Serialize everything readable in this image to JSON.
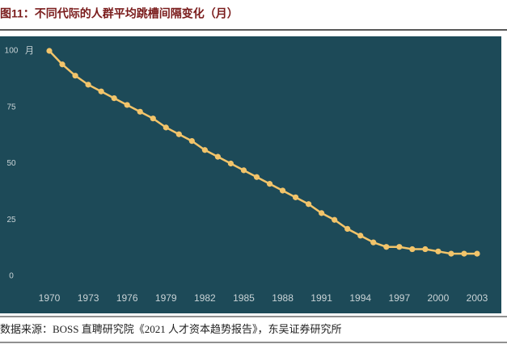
{
  "chart_data": {
    "type": "line",
    "title": "图11：不同代际的人群平均跳槽间隔变化（月）",
    "y_unit": "月",
    "source": "数据来源：BOSS 直聘研究院《2021 人才资本趋势报告》，东吴证券研究所",
    "x": [
      1970,
      1971,
      1972,
      1973,
      1974,
      1975,
      1976,
      1977,
      1978,
      1979,
      1980,
      1981,
      1982,
      1983,
      1984,
      1985,
      1986,
      1987,
      1988,
      1989,
      1990,
      1991,
      1992,
      1993,
      1994,
      1995,
      1996,
      1997,
      1998,
      1999,
      2000,
      2001,
      2002,
      2003
    ],
    "series": [
      {
        "name": "平均跳槽间隔",
        "color": "#f2c46a",
        "values": [
          100,
          94,
          89,
          85,
          82,
          79,
          76,
          73,
          70,
          66,
          63,
          60,
          56,
          53,
          50,
          47,
          44,
          41,
          38,
          35,
          32,
          28,
          25,
          21,
          18,
          15,
          13,
          13,
          12,
          12,
          11,
          10,
          10,
          10
        ]
      }
    ],
    "xlim": [
      1970,
      2003
    ],
    "xticks": [
      1970,
      1973,
      1976,
      1979,
      1982,
      1985,
      1988,
      1991,
      1994,
      1997,
      2000,
      2003
    ],
    "ylim": [
      0,
      100
    ],
    "yticks": [
      0,
      25,
      50,
      75,
      100
    ],
    "grid": false,
    "background": "#1d4a58"
  }
}
